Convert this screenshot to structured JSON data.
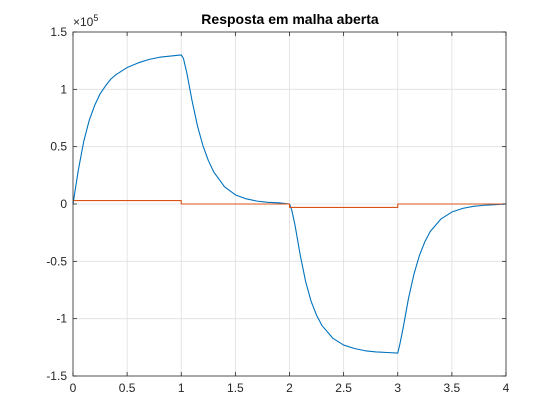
{
  "chart_data": {
    "type": "line",
    "title": "Resposta em malha aberta",
    "xlabel": "",
    "ylabel": "",
    "xlim": [
      0,
      4
    ],
    "ylim": [
      -150000,
      150000
    ],
    "y_exponent_label": {
      "base": "×10",
      "power": "5"
    },
    "grid": true,
    "x_ticks": [
      0,
      0.5,
      1,
      1.5,
      2,
      2.5,
      3,
      3.5,
      4
    ],
    "x_tick_labels": [
      "0",
      "0.5",
      "1",
      "1.5",
      "2",
      "2.5",
      "3",
      "3.5",
      "4"
    ],
    "y_ticks": [
      -150000,
      -100000,
      -50000,
      0,
      50000,
      100000,
      150000
    ],
    "y_tick_labels": [
      "-1.5",
      "-1",
      "-0.5",
      "0",
      "0.5",
      "1",
      "1.5"
    ],
    "series": [
      {
        "color": "#0072BD",
        "x": [
          0,
          0.05,
          0.1,
          0.15,
          0.2,
          0.25,
          0.3,
          0.35,
          0.4,
          0.5,
          0.6,
          0.7,
          0.8,
          0.9,
          1.0,
          1.02,
          1.05,
          1.1,
          1.15,
          1.2,
          1.25,
          1.3,
          1.4,
          1.5,
          1.6,
          1.7,
          1.8,
          1.9,
          2.0,
          2.02,
          2.05,
          2.1,
          2.15,
          2.2,
          2.25,
          2.3,
          2.4,
          2.5,
          2.6,
          2.7,
          2.8,
          2.9,
          3.0,
          3.02,
          3.05,
          3.1,
          3.15,
          3.2,
          3.25,
          3.3,
          3.4,
          3.5,
          3.6,
          3.7,
          3.8,
          3.9,
          4.0
        ],
        "y": [
          0,
          30000,
          55000,
          73000,
          86000,
          96000,
          103000,
          109000,
          113000,
          119000,
          123000,
          126000,
          128000,
          129000,
          130000,
          127000,
          115000,
          90000,
          68000,
          51000,
          38000,
          28000,
          15000,
          8000,
          4500,
          2500,
          1500,
          1000,
          0,
          -5000,
          -18000,
          -45000,
          -68000,
          -85000,
          -97000,
          -106000,
          -117000,
          -123000,
          -126000,
          -128000,
          -129000,
          -129500,
          -130000,
          -122000,
          -108000,
          -82000,
          -61000,
          -45000,
          -33000,
          -24000,
          -13000,
          -7000,
          -3800,
          -2000,
          -1100,
          -600,
          0
        ]
      },
      {
        "color": "#D95319",
        "x": [
          0,
          1.0,
          1.0,
          2.0,
          2.0,
          3.0,
          3.0,
          4.0
        ],
        "y": [
          3000,
          3000,
          0,
          0,
          -3000,
          -3000,
          0,
          0
        ]
      }
    ]
  }
}
